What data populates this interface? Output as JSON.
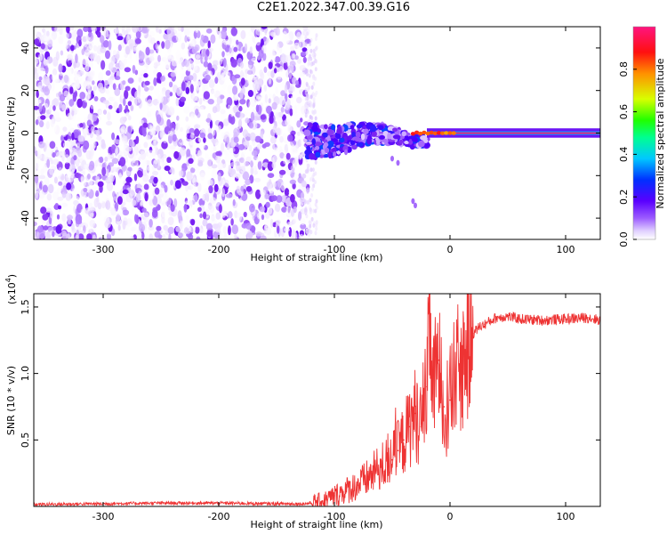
{
  "figure": {
    "title": "C2E1.2022.347.00.39.G16"
  },
  "chart_data": [
    {
      "type": "heatmap",
      "title": "C2E1.2022.347.00.39.G16",
      "xlabel": "Height of straight line (km)",
      "ylabel": "Frequency (Hz)",
      "xlim": [
        -360,
        130
      ],
      "ylim": [
        -50,
        50
      ],
      "x_ticks": [
        -300,
        -200,
        -100,
        0,
        100
      ],
      "y_ticks": [
        -40,
        -20,
        0,
        20,
        40
      ],
      "colorbar": {
        "label": "Normalized spectral amplitude",
        "range": [
          0.0,
          1.0
        ],
        "ticks": [
          0.0,
          0.2,
          0.4,
          0.6,
          0.8
        ],
        "colormap": [
          "#ffffff",
          "#e8d8ff",
          "#b07cff",
          "#7a20f0",
          "#4a00ff",
          "#0050ff",
          "#00d8ff",
          "#00ff40",
          "#f0ff00",
          "#ff8000",
          "#ff0020",
          "#ff1070"
        ]
      },
      "regions": [
        {
          "name": "noise",
          "x_range": [
            -360,
            -120
          ],
          "y_range": [
            -50,
            50
          ],
          "amplitude": [
            0.0,
            0.2
          ]
        },
        {
          "name": "transition",
          "x_range": [
            -125,
            -20
          ],
          "y_range": [
            -8,
            8
          ],
          "amplitude": [
            0.1,
            0.45
          ]
        },
        {
          "name": "carrier",
          "x_range": [
            -20,
            130
          ],
          "y_range": [
            -1,
            1
          ],
          "amplitude": [
            0.7,
            1.0
          ]
        }
      ],
      "grid": false
    },
    {
      "type": "line",
      "xlabel": "Height of straight line (km)",
      "ylabel": "SNR (10 * v/v)",
      "y_scale_label": "(x10",
      "y_scale_exponent": "4",
      "y_scale_suffix": ")",
      "xlim": [
        -360,
        130
      ],
      "ylim": [
        0,
        1.6
      ],
      "x_ticks": [
        -300,
        -200,
        -100,
        0,
        100
      ],
      "y_ticks": [
        0.5,
        1.0,
        1.5
      ],
      "series_color": "#ee3333",
      "grid": false,
      "x": [
        -360,
        -300,
        -250,
        -200,
        -150,
        -125,
        -110,
        -100,
        -90,
        -80,
        -70,
        -60,
        -50,
        -45,
        -40,
        -35,
        -30,
        -25,
        -20,
        -17,
        -15,
        -10,
        -5,
        0,
        5,
        10,
        15,
        20,
        25,
        30,
        40,
        50,
        60,
        80,
        100,
        120,
        130
      ],
      "y": [
        0.015,
        0.02,
        0.025,
        0.025,
        0.02,
        0.02,
        0.04,
        0.08,
        0.12,
        0.16,
        0.22,
        0.3,
        0.35,
        0.42,
        0.5,
        0.6,
        0.7,
        0.6,
        0.9,
        1.45,
        0.85,
        1.1,
        0.75,
        0.8,
        1.0,
        1.05,
        1.2,
        1.3,
        1.35,
        1.37,
        1.42,
        1.43,
        1.41,
        1.4,
        1.41,
        1.42,
        1.4
      ]
    }
  ]
}
